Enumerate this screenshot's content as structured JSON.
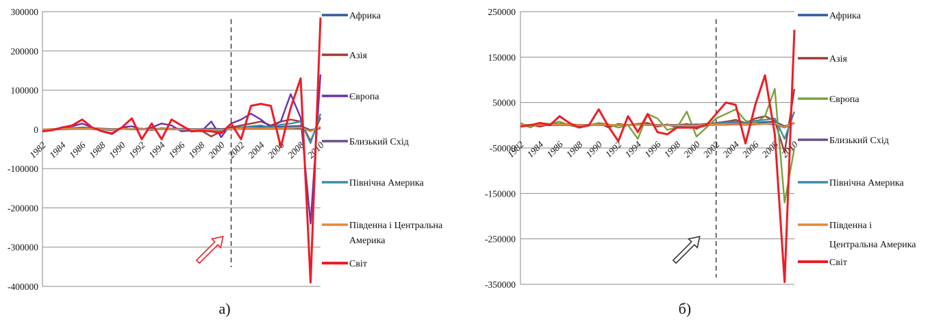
{
  "chart_data": [
    {
      "type": "line",
      "panel_label": "а)",
      "ylim": [
        -400000,
        300000
      ],
      "y_ticks": [
        "300000",
        "200000",
        "100000",
        "0",
        "-100000",
        "-200000",
        "-300000",
        "-400000"
      ],
      "x": [
        1982,
        1983,
        1984,
        1985,
        1986,
        1987,
        1988,
        1989,
        1990,
        1991,
        1992,
        1993,
        1994,
        1995,
        1996,
        1997,
        1998,
        1999,
        2000,
        2001,
        2002,
        2003,
        2004,
        2005,
        2006,
        2007,
        2008,
        2009,
        2010
      ],
      "x_ticks": [
        "1982",
        "1984",
        "1986",
        "1988",
        "1990",
        "1992",
        "1994",
        "1996",
        "1998",
        "2000",
        "2002",
        "2004",
        "2006",
        "2008",
        "2010"
      ],
      "vline_year": 2001,
      "grid": "horizontal",
      "legend_position": "right",
      "series": [
        {
          "name": "Африка",
          "color": "#2e5b9a",
          "values": [
            0,
            1000,
            2000,
            2500,
            3000,
            3000,
            2000,
            1000,
            1500,
            1000,
            1000,
            1500,
            2000,
            2000,
            1500,
            1000,
            1000,
            2000,
            1000,
            3000,
            5000,
            6000,
            7000,
            6000,
            7000,
            8000,
            9000,
            -2000,
            5000
          ]
        },
        {
          "name": "Азія",
          "color": "#9e3a37",
          "values": [
            0,
            0,
            2000,
            3000,
            5000,
            3000,
            0,
            -2000,
            3000,
            0,
            2000,
            -2000,
            3000,
            1000,
            0,
            -1000,
            -3000,
            -18000,
            -5000,
            5000,
            10000,
            15000,
            20000,
            10000,
            20000,
            25000,
            20000,
            -30000,
            30000
          ]
        },
        {
          "name": "Європа",
          "color": "#6a30b0",
          "values": [
            -3000,
            -1000,
            5000,
            8000,
            15000,
            5000,
            -5000,
            -12000,
            5000,
            8000,
            0,
            5000,
            15000,
            10000,
            -5000,
            -3000,
            -5000,
            20000,
            -20000,
            15000,
            25000,
            40000,
            25000,
            5000,
            20000,
            90000,
            30000,
            -240000,
            140000
          ]
        },
        {
          "name": "Близький Схід",
          "color": "#6c4d8a",
          "values": [
            0,
            0,
            0,
            500,
            1000,
            500,
            0,
            0,
            1000,
            0,
            0,
            0,
            500,
            0,
            0,
            0,
            0,
            0,
            0,
            1000,
            1000,
            2000,
            2000,
            1000,
            2000,
            3000,
            2000,
            -3000,
            4000
          ]
        },
        {
          "name": "Північна Америка",
          "color": "#3a8ea8",
          "values": [
            0,
            1000,
            2000,
            3000,
            4000,
            2000,
            0,
            -1000,
            2000,
            1000,
            1000,
            0,
            2000,
            1000,
            0,
            0,
            -1000,
            -3000,
            -4000,
            1000,
            5000,
            8000,
            10000,
            5000,
            12000,
            15000,
            20000,
            -35000,
            40000
          ]
        },
        {
          "name": "Південна і Центральна Америка",
          "color": "#e98a35",
          "values": [
            0,
            500,
            1000,
            1000,
            1500,
            1000,
            500,
            0,
            1000,
            500,
            500,
            0,
            1000,
            500,
            0,
            0,
            0,
            -1000,
            -1000,
            1000,
            2000,
            3000,
            3000,
            2000,
            3000,
            4000,
            5000,
            -5000,
            7000
          ]
        },
        {
          "name": "Світ",
          "color": "#ee1c24",
          "values": [
            -5000,
            -2000,
            5000,
            10000,
            25000,
            5000,
            -5000,
            -10000,
            5000,
            28000,
            -25000,
            15000,
            -25000,
            25000,
            10000,
            -5000,
            -3000,
            -5000,
            -10000,
            15000,
            -25000,
            60000,
            65000,
            60000,
            -45000,
            55000,
            130000,
            -390000,
            285000
          ]
        }
      ]
    },
    {
      "type": "line",
      "panel_label": "б)",
      "ylim": [
        -350000,
        250000
      ],
      "y_ticks": [
        "250000",
        "150000",
        "50000",
        "-50000",
        "-150000",
        "-250000",
        "-350000"
      ],
      "x": [
        1982,
        1983,
        1984,
        1985,
        1986,
        1987,
        1988,
        1989,
        1990,
        1991,
        1992,
        1993,
        1994,
        1995,
        1996,
        1997,
        1998,
        1999,
        2000,
        2001,
        2002,
        2003,
        2004,
        2005,
        2006,
        2007,
        2008,
        2009,
        2010
      ],
      "x_ticks": [
        "1982",
        "1984",
        "1986",
        "1988",
        "1990",
        "1992",
        "1994",
        "1996",
        "1998",
        "2000",
        "2002",
        "2004",
        "2006",
        "2008",
        "2010"
      ],
      "vline_year": 2002,
      "grid": "horizontal",
      "legend_position": "right",
      "series": [
        {
          "name": "Африка",
          "color": "#2e5b9a",
          "values": [
            0,
            1000,
            2000,
            2000,
            3000,
            2000,
            1000,
            1000,
            1000,
            1000,
            1000,
            1000,
            2000,
            2000,
            1000,
            1000,
            1000,
            2000,
            1000,
            3000,
            4000,
            5000,
            6000,
            5000,
            6000,
            7000,
            8000,
            -2000,
            5000
          ]
        },
        {
          "name": "Азія",
          "color": "#9e3a37",
          "values": [
            0,
            1000,
            -3000,
            2000,
            3000,
            2000,
            -2000,
            0,
            5000,
            -5000,
            3000,
            0,
            3000,
            5000,
            -3000,
            2000,
            -5000,
            3000,
            -8000,
            3000,
            5000,
            8000,
            12000,
            5000,
            15000,
            20000,
            10000,
            -60000,
            80000
          ]
        },
        {
          "name": "Європа",
          "color": "#77a23a",
          "values": [
            5000,
            -5000,
            5000,
            3000,
            8000,
            0,
            -5000,
            0,
            5000,
            2000,
            -5000,
            0,
            -30000,
            25000,
            15000,
            -10000,
            -5000,
            30000,
            -25000,
            -5000,
            15000,
            25000,
            35000,
            10000,
            5000,
            20000,
            80000,
            -170000,
            -50000
          ]
        },
        {
          "name": "Близький Схід",
          "color": "#6c4d8a",
          "values": [
            0,
            0,
            1000,
            0,
            500,
            0,
            0,
            0,
            500,
            0,
            0,
            0,
            1000,
            0,
            0,
            0,
            0,
            0,
            2000,
            0,
            1000,
            1000,
            2000,
            1000,
            2000,
            3000,
            2000,
            -5000,
            5000
          ]
        },
        {
          "name": "Північна Америка",
          "color": "#3a8ea8",
          "values": [
            0,
            1000,
            2000,
            2000,
            3000,
            2000,
            0,
            -1000,
            2000,
            1000,
            1000,
            0,
            2000,
            2000,
            0,
            0,
            -1000,
            -2000,
            -3000,
            1000,
            4000,
            6000,
            8000,
            4000,
            10000,
            12000,
            15000,
            -30000,
            30000
          ]
        },
        {
          "name": "Південна і Центральна Америка",
          "color": "#e98a35",
          "values": [
            0,
            500,
            1000,
            1000,
            1500,
            1000,
            500,
            0,
            1000,
            500,
            500,
            0,
            1000,
            500,
            0,
            0,
            0,
            -500,
            -500,
            1000,
            2000,
            2000,
            3000,
            2000,
            3000,
            3000,
            4000,
            -4000,
            6000
          ]
        },
        {
          "name": "Світ",
          "color": "#ee1c24",
          "values": [
            -3000,
            0,
            5000,
            0,
            20000,
            5000,
            -5000,
            0,
            35000,
            -3000,
            -35000,
            20000,
            -15000,
            25000,
            -15000,
            -20000,
            -5000,
            -5000,
            -5000,
            0,
            25000,
            50000,
            45000,
            -40000,
            45000,
            110000,
            -20000,
            -345000,
            210000
          ]
        }
      ]
    }
  ]
}
